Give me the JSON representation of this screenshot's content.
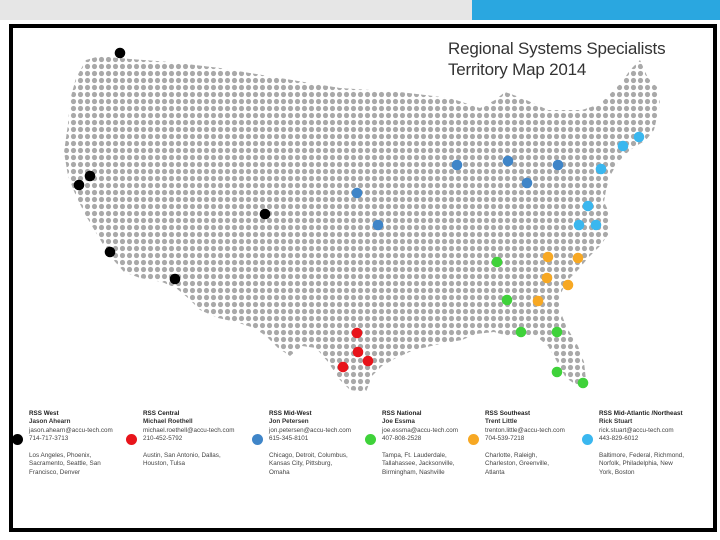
{
  "title_line1": "Regional Systems Specialists",
  "title_line2": "Territory Map 2014",
  "colors": {
    "west": "#000000",
    "central": "#e8141b",
    "midwest": "#3f85c8",
    "national": "#3fd23a",
    "southeast": "#f7a823",
    "midatlantic": "#3ab7ef",
    "map_dot": "#a9a9a9"
  },
  "legend": [
    {
      "key": "west",
      "region": "RSS West",
      "name": "Jason Ahearn",
      "email": "jason.ahearn@accu-tech.com",
      "phone": "714-717-3713",
      "cities": [
        "Los Angeles, Phoenix,",
        "Sacramento, Seattle, San",
        "Francisco, Denver"
      ]
    },
    {
      "key": "central",
      "region": "RSS Central",
      "name": "Michael Roethell",
      "email": "michael.roethell@accu-tech.com",
      "phone": "210-452-5792",
      "cities": [
        "Austin, San Antonio, Dallas,",
        "Houston, Tulsa"
      ]
    },
    {
      "key": "midwest",
      "region": "RSS Mid-West",
      "name": "Jon Petersen",
      "email": "jon.petersen@accu-tech.com",
      "phone": "615-345-8101",
      "cities": [
        "Chicago, Detroit, Columbus,",
        "Kansas City, Pittsburg,",
        "Omaha"
      ]
    },
    {
      "key": "national",
      "region": "RSS National",
      "name": "Joe Essma",
      "email": "joe.essma@accu-tech.com",
      "phone": "407-808-2528",
      "cities": [
        "Tampa, Ft. Lauderdale,",
        "Tallahassee, Jacksonville,",
        "Birmingham, Nashville"
      ]
    },
    {
      "key": "southeast",
      "region": "RSS Southeast",
      "name": "Trent Little",
      "email": "trenton.little@accu-tech.com",
      "phone": "704-539-7218",
      "cities": [
        "Charlotte, Raleigh,",
        "Charleston, Greenville,",
        "Atlanta"
      ]
    },
    {
      "key": "midatlantic",
      "region": "RSS Mid-Atlantic /Northeast",
      "name": "Rick Stuart",
      "email": "rick.stuart@accu-tech.com",
      "phone": "443-829-6012",
      "cities": [
        "Baltimore, Federal, Richmond,",
        "Norfolk, Philadelphia, New",
        "York, Boston"
      ]
    }
  ]
}
